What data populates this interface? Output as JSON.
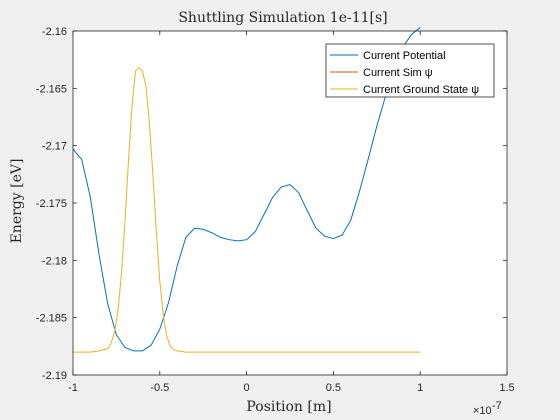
{
  "chart_data": {
    "type": "line",
    "title": "Shuttling Simulation 1e-11[s]",
    "xlabel": "Position [m]",
    "ylabel": "Energy [eV]",
    "x_exponent_label": "×10",
    "x_exponent_power": "-7",
    "xlim": [
      -1.0,
      1.5
    ],
    "ylim": [
      -2.19,
      -2.16
    ],
    "xticks": [
      -1,
      -0.5,
      0,
      0.5,
      1,
      1.5
    ],
    "xtick_labels": [
      "-1",
      "-0.5",
      "0",
      "0.5",
      "1",
      "1.5"
    ],
    "yticks": [
      -2.16,
      -2.165,
      -2.17,
      -2.175,
      -2.18,
      -2.185,
      -2.19
    ],
    "ytick_labels": [
      "-2.16",
      "-2.165",
      "-2.17",
      "-2.175",
      "-2.18",
      "-2.185",
      "-2.19"
    ],
    "grid": false,
    "legend_position": "top-right",
    "series": [
      {
        "name": "Current Potential",
        "color": "#0072BD",
        "x": [
          -1.0,
          -0.95,
          -0.9,
          -0.85,
          -0.8,
          -0.75,
          -0.7,
          -0.65,
          -0.6,
          -0.55,
          -0.5,
          -0.45,
          -0.4,
          -0.35,
          -0.3,
          -0.25,
          -0.2,
          -0.15,
          -0.1,
          -0.05,
          0.0,
          0.05,
          0.1,
          0.15,
          0.2,
          0.25,
          0.3,
          0.35,
          0.4,
          0.45,
          0.5,
          0.55,
          0.6,
          0.65,
          0.7,
          0.75,
          0.8,
          0.85,
          0.9,
          0.95,
          1.0
        ],
        "y": [
          -2.1703,
          -2.1712,
          -2.1745,
          -2.1795,
          -2.1838,
          -2.1865,
          -2.1876,
          -2.1879,
          -2.1879,
          -2.1874,
          -2.186,
          -2.1837,
          -2.1805,
          -2.178,
          -2.1772,
          -2.1773,
          -2.1776,
          -2.178,
          -2.1782,
          -2.1783,
          -2.1782,
          -2.1775,
          -2.176,
          -2.1745,
          -2.1736,
          -2.1734,
          -2.1741,
          -2.1757,
          -2.1772,
          -2.1779,
          -2.1781,
          -2.1778,
          -2.1765,
          -2.174,
          -2.1712,
          -2.1683,
          -2.1657,
          -2.1634,
          -2.1614,
          -2.1603,
          -2.1597
        ]
      },
      {
        "name": "Current Sim ψ",
        "color": "#D95319",
        "x": [],
        "y": []
      },
      {
        "name": "Current Ground State ψ",
        "color": "#EDB120",
        "x": [
          -1.0,
          -0.95,
          -0.9,
          -0.85,
          -0.8,
          -0.78,
          -0.76,
          -0.74,
          -0.72,
          -0.7,
          -0.68,
          -0.66,
          -0.64,
          -0.62,
          -0.6,
          -0.58,
          -0.56,
          -0.54,
          -0.52,
          -0.5,
          -0.48,
          -0.46,
          -0.44,
          -0.42,
          -0.4,
          -0.35,
          -0.3,
          -0.2,
          -0.1,
          0.0,
          0.2,
          0.4,
          0.6,
          0.8,
          1.0
        ],
        "y": [
          -2.188,
          -2.188,
          -2.188,
          -2.1879,
          -2.1877,
          -2.1872,
          -2.1862,
          -2.1843,
          -2.181,
          -2.1765,
          -2.1712,
          -2.1665,
          -2.1635,
          -2.1632,
          -2.1635,
          -2.1648,
          -2.168,
          -2.1725,
          -2.1775,
          -2.1818,
          -2.1848,
          -2.1866,
          -2.1875,
          -2.1878,
          -2.1879,
          -2.188,
          -2.188,
          -2.188,
          -2.188,
          -2.188,
          -2.188,
          -2.188,
          -2.188,
          -2.188,
          -2.188
        ]
      }
    ]
  }
}
